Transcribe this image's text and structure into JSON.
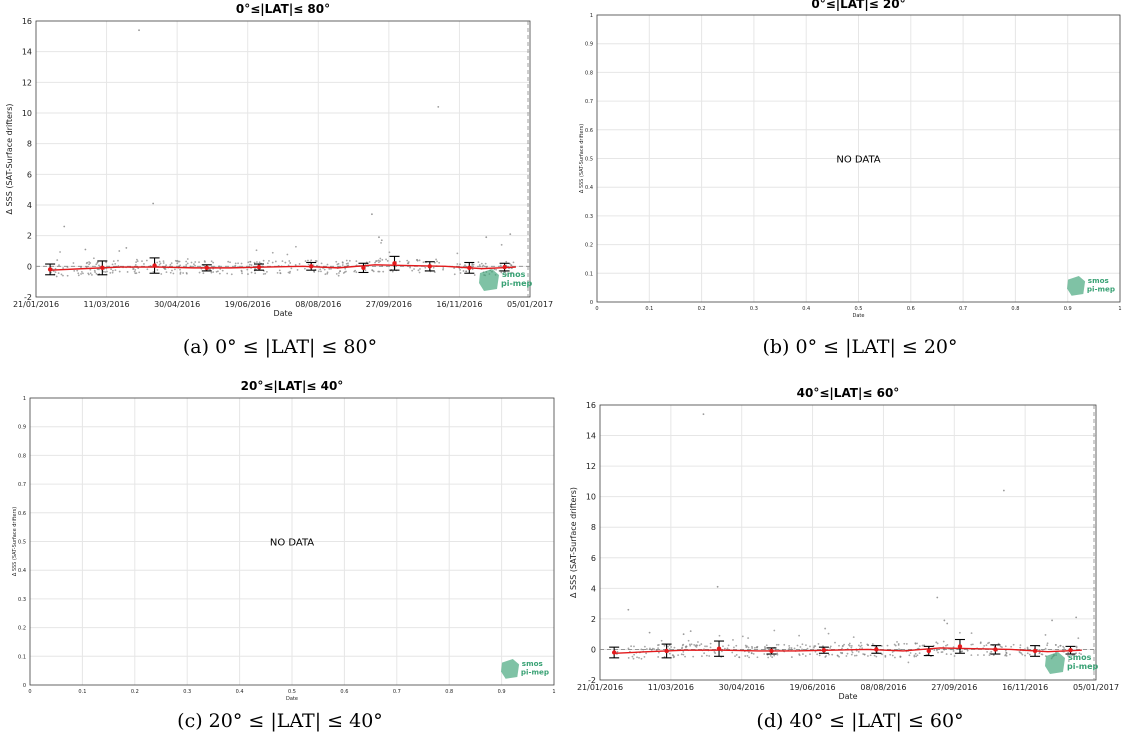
{
  "captions": {
    "a": "(a) 0° ≤ |LAT| ≤ 80°",
    "b": "(b) 0° ≤ |LAT| ≤ 20°",
    "c": "(c) 20° ≤ |LAT| ≤ 40°",
    "d": "(d) 40° ≤ |LAT| ≤ 60°"
  },
  "logo": {
    "line1": "smos",
    "line2": "pi-mep"
  },
  "colors": {
    "mean_line": "#e31a1c",
    "scatter": "#808080",
    "grid": "#e6e6e6",
    "logo": "#3aa275"
  },
  "chart_data": [
    {
      "id": "a",
      "type": "scatter",
      "title": "0°≤|LAT|≤ 80°",
      "xlabel": "Date",
      "ylabel": "Δ SSS (SAT-Surface drifters)",
      "x_ticks": [
        "21/01/2016",
        "11/03/2016",
        "30/04/2016",
        "19/06/2016",
        "08/08/2016",
        "27/09/2016",
        "16/11/2016",
        "05/01/2017"
      ],
      "xlim": [
        "21/01/2016",
        "05/01/2017"
      ],
      "ylim": [
        -2,
        16
      ],
      "y_ticks": [
        -2,
        0,
        2,
        4,
        6,
        8,
        10,
        12,
        14,
        16
      ],
      "grid": true,
      "reference_line": 0,
      "series": [
        {
          "x": [
            "31/01/2016",
            "24/02/2016",
            "21/03/2016",
            "17/04/2016",
            "12/05/2016",
            "07/06/2016",
            "02/07/2016",
            "28/07/2016",
            "22/08/2016",
            "17/09/2016",
            "11/10/2016",
            "06/11/2016",
            "02/12/2016",
            "26/12/2016"
          ],
          "y": [
            -0.25,
            -0.15,
            -0.05,
            -0.05,
            -0.1,
            -0.1,
            -0.05,
            0.0,
            -0.1,
            0.1,
            0.05,
            0.0,
            -0.15,
            -0.05
          ]
        }
      ],
      "error_bars": {
        "x": [
          "31/01/2016",
          "08/03/2016",
          "14/04/2016",
          "21/05/2016",
          "27/06/2016",
          "03/08/2016",
          "09/09/2016",
          "01/10/2016",
          "26/10/2016",
          "23/11/2016",
          "18/12/2016"
        ],
        "y": [
          -0.2,
          -0.1,
          0.05,
          -0.1,
          -0.05,
          0.0,
          -0.1,
          0.2,
          0.0,
          -0.1,
          -0.05
        ],
        "err": [
          0.35,
          0.45,
          0.5,
          0.2,
          0.2,
          0.25,
          0.3,
          0.45,
          0.3,
          0.35,
          0.25
        ]
      },
      "outliers": [
        {
          "x": "03/04/2016",
          "y": 15.4
        },
        {
          "x": "01/11/2016",
          "y": 10.4
        },
        {
          "x": "13/04/2016",
          "y": 4.1
        },
        {
          "x": "15/09/2016",
          "y": 3.4
        },
        {
          "x": "10/02/2016",
          "y": 2.6
        },
        {
          "x": "20/09/2016",
          "y": 1.9
        },
        {
          "x": "22/09/2016",
          "y": 1.7
        },
        {
          "x": "25/03/2016",
          "y": 1.2
        },
        {
          "x": "20/03/2016",
          "y": 1.0
        },
        {
          "x": "25/02/2016",
          "y": 1.1
        },
        {
          "x": "05/12/2016",
          "y": 1.9
        },
        {
          "x": "22/12/2016",
          "y": 2.1
        }
      ]
    },
    {
      "id": "b",
      "type": "scatter",
      "title": "0°≤|LAT|≤ 20°",
      "xlabel": "Date",
      "ylabel": "Δ SSS (SAT-Surface drifters)",
      "xlim": [
        0,
        1
      ],
      "ylim": [
        0,
        1
      ],
      "x_ticks": [
        0,
        0.1,
        0.2,
        0.3,
        0.4,
        0.5,
        0.6,
        0.7,
        0.8,
        0.9,
        1
      ],
      "y_ticks": [
        0,
        0.1,
        0.2,
        0.3,
        0.4,
        0.5,
        0.6,
        0.7,
        0.8,
        0.9,
        1
      ],
      "grid": true,
      "annotation": "NO DATA"
    },
    {
      "id": "c",
      "type": "scatter",
      "title": "20°≤|LAT|≤ 40°",
      "xlabel": "Date",
      "ylabel": "Δ SSS (SAT-Surface drifters)",
      "xlim": [
        0,
        1
      ],
      "ylim": [
        0,
        1
      ],
      "x_ticks": [
        0,
        0.1,
        0.2,
        0.3,
        0.4,
        0.5,
        0.6,
        0.7,
        0.8,
        0.9,
        1
      ],
      "y_ticks": [
        0,
        0.1,
        0.2,
        0.3,
        0.4,
        0.5,
        0.6,
        0.7,
        0.8,
        0.9,
        1
      ],
      "grid": true,
      "annotation": "NO DATA"
    },
    {
      "id": "d",
      "type": "scatter",
      "title": "40°≤|LAT|≤ 60°",
      "xlabel": "Date",
      "ylabel": "Δ SSS (SAT-Surface drifters)",
      "x_ticks": [
        "21/01/2016",
        "11/03/2016",
        "30/04/2016",
        "19/06/2016",
        "08/08/2016",
        "27/09/2016",
        "16/11/2016",
        "05/01/2017"
      ],
      "xlim": [
        "21/01/2016",
        "05/01/2017"
      ],
      "ylim": [
        -2,
        16
      ],
      "y_ticks": [
        -2,
        0,
        2,
        4,
        6,
        8,
        10,
        12,
        14,
        16
      ],
      "grid": true,
      "reference_line": 0,
      "series": [
        {
          "x": [
            "31/01/2016",
            "24/02/2016",
            "21/03/2016",
            "17/04/2016",
            "12/05/2016",
            "07/06/2016",
            "02/07/2016",
            "28/07/2016",
            "22/08/2016",
            "17/09/2016",
            "11/10/2016",
            "06/11/2016",
            "02/12/2016",
            "26/12/2016"
          ],
          "y": [
            -0.25,
            -0.15,
            -0.05,
            -0.05,
            -0.1,
            -0.1,
            -0.05,
            0.0,
            -0.1,
            0.1,
            0.05,
            0.0,
            -0.15,
            -0.05
          ]
        }
      ],
      "error_bars": {
        "x": [
          "31/01/2016",
          "08/03/2016",
          "14/04/2016",
          "21/05/2016",
          "27/06/2016",
          "03/08/2016",
          "09/09/2016",
          "01/10/2016",
          "26/10/2016",
          "23/11/2016",
          "18/12/2016"
        ],
        "y": [
          -0.2,
          -0.1,
          0.05,
          -0.1,
          -0.05,
          0.0,
          -0.1,
          0.2,
          0.0,
          -0.1,
          -0.05
        ],
        "err": [
          0.35,
          0.45,
          0.5,
          0.2,
          0.2,
          0.25,
          0.3,
          0.45,
          0.3,
          0.35,
          0.25
        ]
      },
      "outliers": [
        {
          "x": "03/04/2016",
          "y": 15.4
        },
        {
          "x": "01/11/2016",
          "y": 10.4
        },
        {
          "x": "13/04/2016",
          "y": 4.1
        },
        {
          "x": "15/09/2016",
          "y": 3.4
        },
        {
          "x": "10/02/2016",
          "y": 2.6
        },
        {
          "x": "20/09/2016",
          "y": 1.9
        },
        {
          "x": "22/09/2016",
          "y": 1.7
        },
        {
          "x": "25/03/2016",
          "y": 1.2
        },
        {
          "x": "20/03/2016",
          "y": 1.0
        },
        {
          "x": "25/02/2016",
          "y": 1.1
        },
        {
          "x": "05/12/2016",
          "y": 1.9
        },
        {
          "x": "22/12/2016",
          "y": 2.1
        }
      ]
    }
  ]
}
